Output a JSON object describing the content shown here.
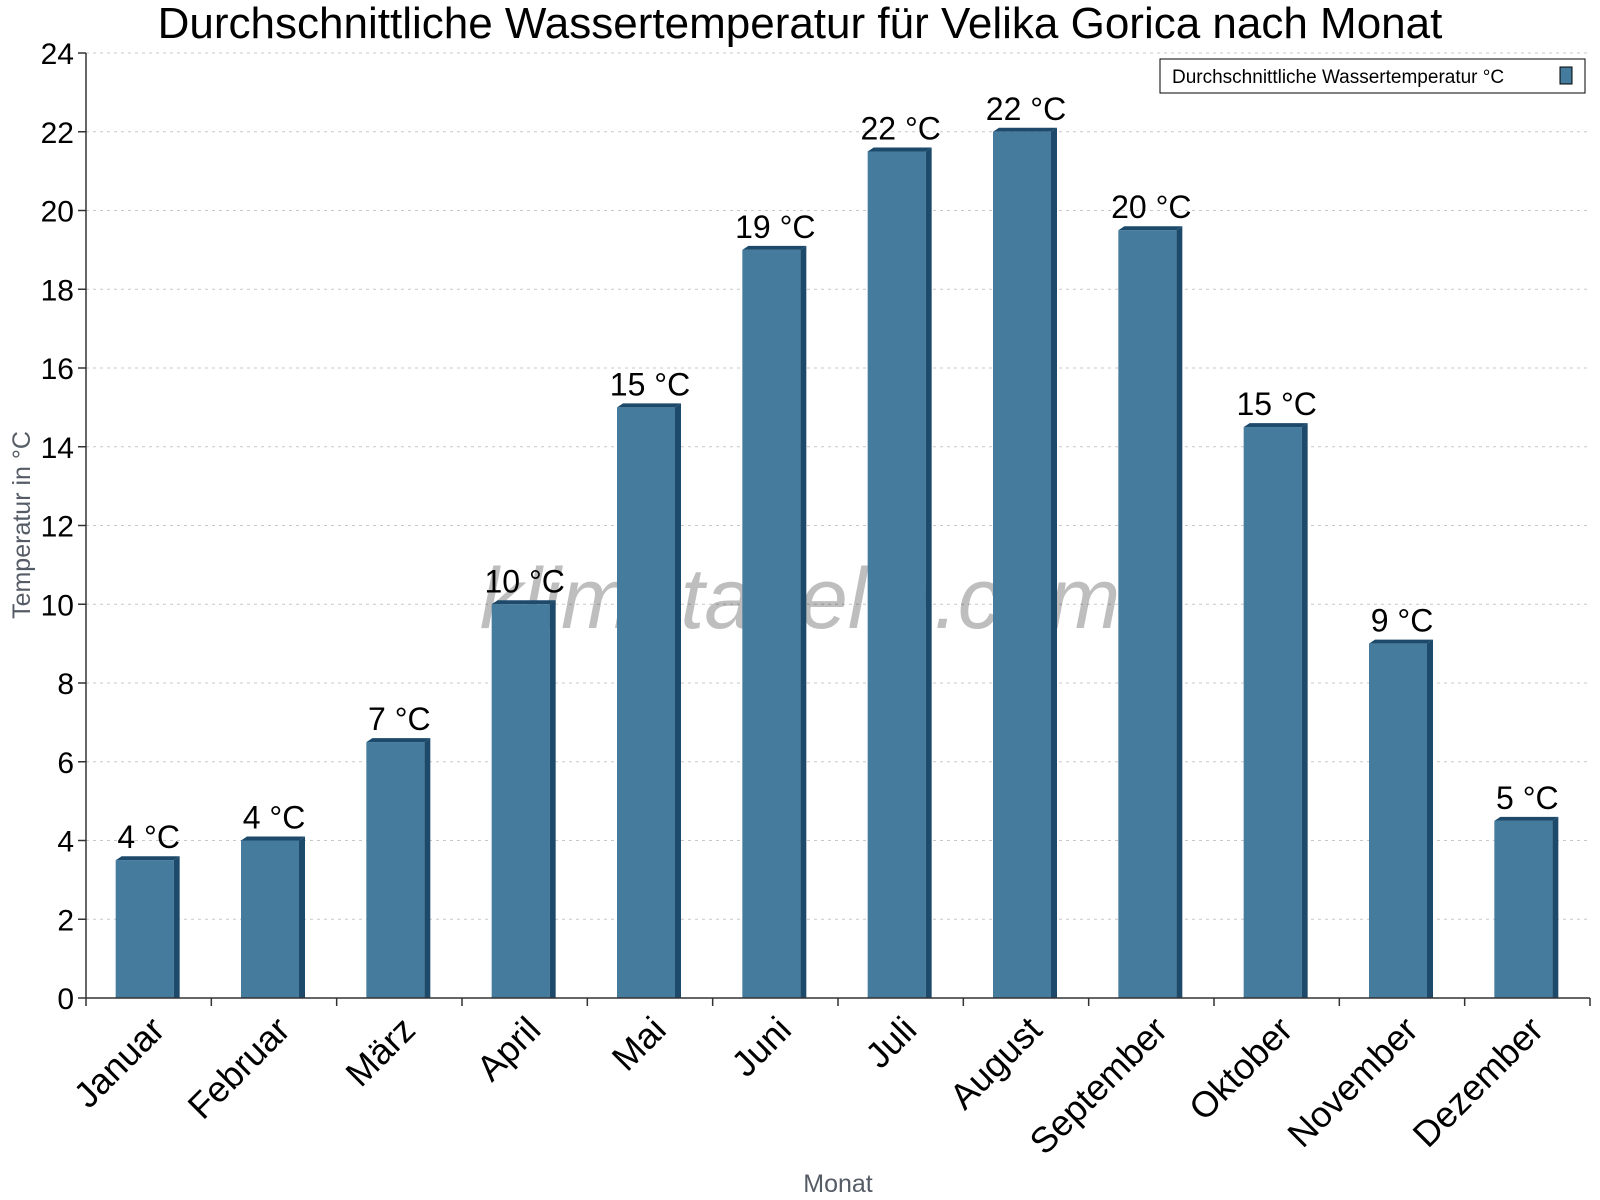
{
  "chart_data": {
    "type": "bar",
    "title": "Durchschnittliche Wassertemperatur für Velika Gorica nach Monat",
    "xlabel": "Monat",
    "ylabel": "Temperatur in °C",
    "categories": [
      "Januar",
      "Februar",
      "März",
      "April",
      "Mai",
      "Juni",
      "Juli",
      "August",
      "September",
      "Oktober",
      "November",
      "Dezember"
    ],
    "series": [
      {
        "name": "Durchschnittliche Wassertemperatur °C",
        "values": [
          3.5,
          4.0,
          6.5,
          10.0,
          15.0,
          19.0,
          21.5,
          22.0,
          19.5,
          14.5,
          9.0,
          4.5
        ],
        "labels": [
          "4 °C",
          "4 °C",
          "7 °C",
          "10 °C",
          "15 °C",
          "19 °C",
          "22 °C",
          "22 °C",
          "20 °C",
          "15 °C",
          "9 °C",
          "5 °C"
        ],
        "color": "#457b9d"
      }
    ],
    "ylim": [
      0,
      24
    ],
    "yticks": [
      0,
      2,
      4,
      6,
      8,
      10,
      12,
      14,
      16,
      18,
      20,
      22,
      24
    ],
    "grid": true,
    "legend": "top-right",
    "watermark": "klimatabelle.com",
    "colors": {
      "bar": "#457b9d",
      "bar_edge": "#1d4a6b",
      "grid": "#c8c8c8"
    }
  }
}
